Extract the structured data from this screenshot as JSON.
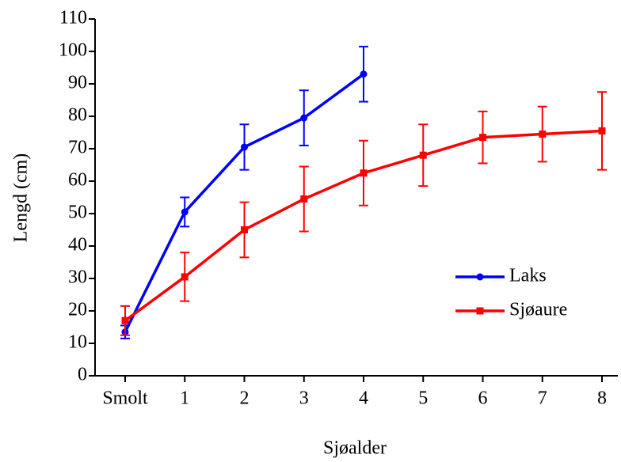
{
  "chart_data": {
    "type": "line",
    "xlabel": "Sjøalder",
    "ylabel": "Lengd (cm)",
    "categories": [
      "Smolt",
      "1",
      "2",
      "3",
      "4",
      "5",
      "6",
      "7",
      "8"
    ],
    "series": [
      {
        "name": "Laks",
        "color": "#0000ff",
        "marker": "circle",
        "values": [
          13.5,
          50.5,
          70.5,
          79.5,
          93,
          null,
          null,
          null,
          null
        ],
        "errors": [
          2,
          4.5,
          7,
          8.5,
          8.5,
          null,
          null,
          null,
          null
        ]
      },
      {
        "name": "Sjøaure",
        "color": "#ff0000",
        "marker": "square",
        "values": [
          17,
          30.5,
          45,
          54.5,
          62.5,
          68,
          73.5,
          74.5,
          75.5
        ],
        "errors": [
          4.5,
          7.5,
          8.5,
          10,
          10,
          9.5,
          8,
          8.5,
          12
        ]
      }
    ],
    "ylim": [
      0,
      110
    ],
    "yticks": [
      0,
      10,
      20,
      30,
      40,
      50,
      60,
      70,
      80,
      90,
      100,
      110
    ],
    "legend": "right"
  }
}
